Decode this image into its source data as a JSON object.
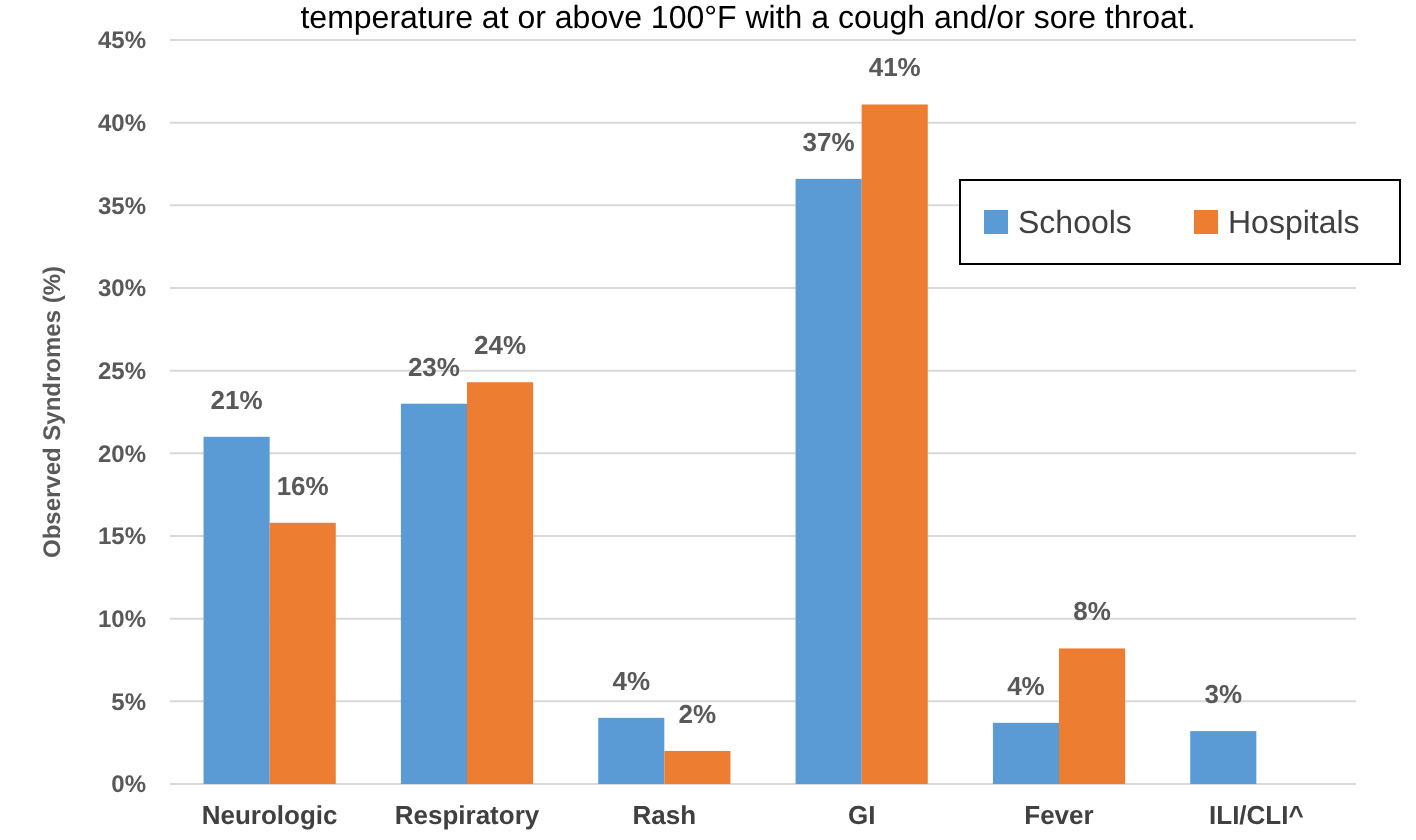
{
  "chart_data": {
    "type": "bar",
    "title": "temperature at or above 100°F with a cough and/or sore throat.",
    "ylabel": "Observed Syndromes (%)",
    "categories": [
      "Neurologic",
      "Respiratory",
      "Rash",
      "GI",
      "Fever",
      "ILI/CLI^"
    ],
    "series": [
      {
        "name": "Schools",
        "color": "#5b9bd5",
        "values": [
          21,
          23,
          4,
          36.6,
          3.7,
          3.2
        ],
        "value_labels": [
          "21%",
          "23%",
          "4%",
          "37%",
          "4%",
          "3%"
        ]
      },
      {
        "name": "Hospitals",
        "color": "#ed7d31",
        "values": [
          15.8,
          24.3,
          2,
          41.1,
          8.2,
          null
        ],
        "value_labels": [
          "16%",
          "24%",
          "2%",
          "41%",
          "8%",
          null
        ]
      }
    ],
    "ylim": [
      0,
      45
    ],
    "yticks": [
      {
        "value": 0,
        "label": "0%"
      },
      {
        "value": 5,
        "label": "5%"
      },
      {
        "value": 10,
        "label": "10%"
      },
      {
        "value": 15,
        "label": "15%"
      },
      {
        "value": 20,
        "label": "20%"
      },
      {
        "value": 25,
        "label": "25%"
      },
      {
        "value": 30,
        "label": "30%"
      },
      {
        "value": 35,
        "label": "35%"
      },
      {
        "value": 40,
        "label": "40%"
      },
      {
        "value": 45,
        "label": "45%"
      }
    ],
    "grid": "y",
    "legend": "right"
  }
}
